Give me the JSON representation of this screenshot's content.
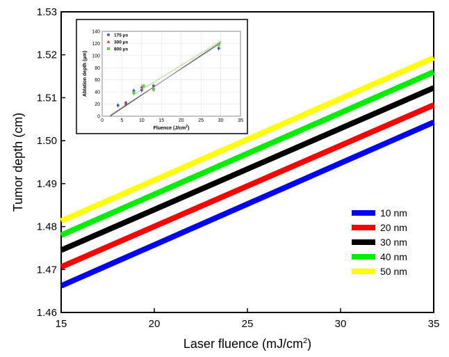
{
  "chart_data": [
    {
      "type": "line",
      "xlabel": "Laser fluence (mJ/cm",
      "xlabel_sup": "2",
      "xlabel_end": ")",
      "ylabel": "Tumor depth (cm)",
      "xlim": [
        15,
        35
      ],
      "ylim": [
        1.46,
        1.53
      ],
      "x_ticks": [
        "15",
        "20",
        "25",
        "30",
        "35"
      ],
      "y_ticks": [
        "1.46",
        "1.47",
        "1.48",
        "1.49",
        "1.50",
        "1.51",
        "1.52",
        "1.53"
      ],
      "legend_position": "right",
      "series": [
        {
          "name": "10 nm",
          "color": "#0000ff",
          "x": [
            15,
            35
          ],
          "values": [
            1.4662,
            1.5043
          ]
        },
        {
          "name": "20 nm",
          "color": "#ff0000",
          "x": [
            15,
            35
          ],
          "values": [
            1.4706,
            1.5083
          ]
        },
        {
          "name": "30 nm",
          "color": "#000000",
          "x": [
            15,
            35
          ],
          "values": [
            1.4745,
            1.5123
          ]
        },
        {
          "name": "40 nm",
          "color": "#00ee00",
          "x": [
            15,
            35
          ],
          "values": [
            1.478,
            1.516
          ]
        },
        {
          "name": "50 nm",
          "color": "#ffff00",
          "x": [
            15,
            35
          ],
          "values": [
            1.4813,
            1.5193
          ]
        }
      ]
    },
    {
      "type": "scatter",
      "xlabel": "Fluence (J/cm",
      "xlabel_sup": "2",
      "xlabel_end": ")",
      "ylabel": "Ablation depth (μm)",
      "xlim": [
        0,
        35
      ],
      "ylim": [
        0,
        140
      ],
      "x_ticks": [
        "0",
        "5",
        "10",
        "15",
        "20",
        "25",
        "30",
        "35"
      ],
      "y_ticks": [
        "0",
        "20",
        "40",
        "60",
        "80",
        "100",
        "120",
        "140"
      ],
      "legend_position": "top-left",
      "series": [
        {
          "name": "175 μs",
          "color": "#4a5bbf",
          "marker": "circle",
          "x": [
            4,
            6,
            8,
            10,
            13,
            29.5
          ],
          "values": [
            18,
            22,
            42,
            43,
            50,
            112
          ]
        },
        {
          "name": "300 μs",
          "color": "#e03030",
          "marker": "triangle",
          "x": [
            6,
            10,
            13
          ],
          "values": [
            20,
            48,
            46
          ]
        },
        {
          "name": "800 μs",
          "color": "#66cc44",
          "marker": "square",
          "x": [
            8,
            10.5,
            13,
            29.5
          ],
          "values": [
            38,
            50,
            44,
            118
          ]
        }
      ],
      "fit_lines": [
        {
          "color": "#222222",
          "x": [
            2,
            30
          ],
          "values": [
            0,
            122
          ]
        },
        {
          "color": "#999999",
          "x": [
            2,
            30
          ],
          "values": [
            2,
            120
          ]
        },
        {
          "color": "#88dd66",
          "x": [
            8,
            30
          ],
          "values": [
            36,
            124
          ]
        }
      ]
    }
  ]
}
